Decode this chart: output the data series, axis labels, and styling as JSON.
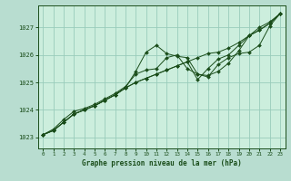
{
  "title": "Graphe pression niveau de la mer (hPa)",
  "bg_color": "#b8ddd0",
  "plot_bg_color": "#cceedd",
  "grid_color": "#99ccbb",
  "line_color": "#1a4d1a",
  "marker_color": "#1a4d1a",
  "xlabel_color": "#1a4d1a",
  "tick_color": "#1a4d1a",
  "ylim": [
    1022.6,
    1027.8
  ],
  "yticks": [
    1023,
    1024,
    1025,
    1026,
    1027
  ],
  "xlim": [
    -0.5,
    23.5
  ],
  "xticks": [
    0,
    1,
    2,
    3,
    4,
    5,
    6,
    7,
    8,
    9,
    10,
    11,
    12,
    13,
    14,
    15,
    16,
    17,
    18,
    19,
    20,
    21,
    22,
    23
  ],
  "series": [
    [
      1023.1,
      1023.25,
      1023.55,
      1023.85,
      1024.0,
      1024.15,
      1024.35,
      1024.55,
      1024.8,
      1025.4,
      1026.1,
      1026.35,
      1026.05,
      1025.95,
      1025.9,
      1025.3,
      1025.25,
      1025.4,
      1025.7,
      1026.15,
      1026.7,
      1027.0,
      1027.2,
      1027.5
    ],
    [
      1023.1,
      1023.25,
      1023.55,
      1023.85,
      1024.0,
      1024.15,
      1024.35,
      1024.55,
      1024.8,
      1025.0,
      1025.15,
      1025.3,
      1025.45,
      1025.6,
      1025.75,
      1025.9,
      1026.05,
      1026.1,
      1026.25,
      1026.45,
      1026.7,
      1026.9,
      1027.15,
      1027.5
    ],
    [
      1023.1,
      1023.25,
      1023.55,
      1023.85,
      1024.0,
      1024.15,
      1024.35,
      1024.55,
      1024.8,
      1025.0,
      1025.15,
      1025.3,
      1025.45,
      1025.6,
      1025.75,
      1025.1,
      1025.5,
      1025.85,
      1026.0,
      1026.35,
      1026.7,
      1026.9,
      1027.15,
      1027.5
    ],
    [
      1023.1,
      1023.3,
      1023.65,
      1023.95,
      1024.05,
      1024.2,
      1024.4,
      1024.6,
      1024.85,
      1025.3,
      1025.45,
      1025.5,
      1025.9,
      1026.0,
      1025.5,
      1025.3,
      1025.2,
      1025.65,
      1025.9,
      1026.05,
      1026.1,
      1026.35,
      1027.05,
      1027.5
    ]
  ]
}
